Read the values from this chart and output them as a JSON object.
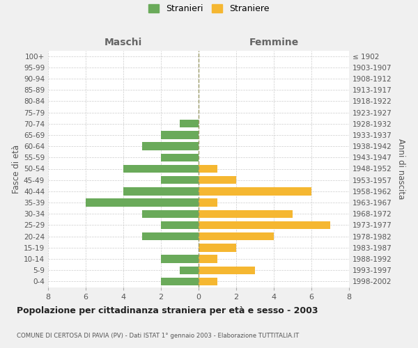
{
  "age_groups": [
    "0-4",
    "5-9",
    "10-14",
    "15-19",
    "20-24",
    "25-29",
    "30-34",
    "35-39",
    "40-44",
    "45-49",
    "50-54",
    "55-59",
    "60-64",
    "65-69",
    "70-74",
    "75-79",
    "80-84",
    "85-89",
    "90-94",
    "95-99",
    "100+"
  ],
  "birth_years": [
    "1998-2002",
    "1993-1997",
    "1988-1992",
    "1983-1987",
    "1978-1982",
    "1973-1977",
    "1968-1972",
    "1963-1967",
    "1958-1962",
    "1953-1957",
    "1948-1952",
    "1943-1947",
    "1938-1942",
    "1933-1937",
    "1928-1932",
    "1923-1927",
    "1918-1922",
    "1913-1917",
    "1908-1912",
    "1903-1907",
    "≤ 1902"
  ],
  "maschi": [
    2,
    1,
    2,
    0,
    3,
    2,
    3,
    6,
    4,
    2,
    4,
    2,
    3,
    2,
    1,
    0,
    0,
    0,
    0,
    0,
    0
  ],
  "straniere": [
    1,
    3,
    1,
    2,
    4,
    7,
    5,
    1,
    6,
    2,
    1,
    0,
    0,
    0,
    0,
    0,
    0,
    0,
    0,
    0,
    0
  ],
  "maschi_color": "#6aaa5a",
  "straniere_color": "#f5b731",
  "title_main": "Popolazione per cittadinanza straniera per età e sesso - 2003",
  "title_sub": "COMUNE DI CERTOSA DI PAVIA (PV) - Dati ISTAT 1° gennaio 2003 - Elaborazione TUTTITALIA.IT",
  "xlabel_left": "Maschi",
  "xlabel_right": "Femmine",
  "ylabel_left": "Fasce di età",
  "ylabel_right": "Anni di nascita",
  "legend_stranieri": "Stranieri",
  "legend_straniere": "Straniere",
  "xlim": 8,
  "bg_color": "#f0f0f0",
  "plot_bg_color": "#ffffff",
  "grid_color": "#cccccc",
  "center_line_color": "#999966"
}
